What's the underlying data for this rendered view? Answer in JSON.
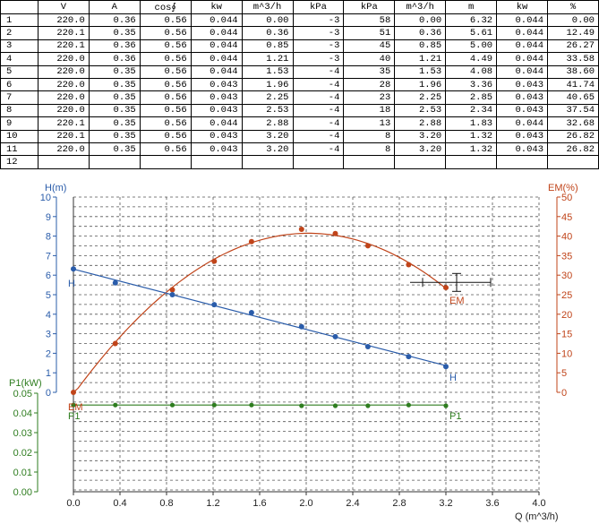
{
  "table": {
    "headers": [
      "",
      "V",
      "A",
      "cos∮",
      "kw",
      "m^3/h",
      "kPa",
      "kPa",
      "m^3/h",
      "m",
      "kw",
      "%"
    ],
    "rows": [
      [
        "1",
        "220.0",
        "0.36",
        "0.56",
        "0.044",
        "0.00",
        "-3",
        "58",
        "0.00",
        "6.32",
        "0.044",
        "0.00"
      ],
      [
        "2",
        "220.1",
        "0.35",
        "0.56",
        "0.044",
        "0.36",
        "-3",
        "51",
        "0.36",
        "5.61",
        "0.044",
        "12.49"
      ],
      [
        "3",
        "220.1",
        "0.36",
        "0.56",
        "0.044",
        "0.85",
        "-3",
        "45",
        "0.85",
        "5.00",
        "0.044",
        "26.27"
      ],
      [
        "4",
        "220.0",
        "0.36",
        "0.56",
        "0.044",
        "1.21",
        "-3",
        "40",
        "1.21",
        "4.49",
        "0.044",
        "33.58"
      ],
      [
        "5",
        "220.0",
        "0.35",
        "0.56",
        "0.044",
        "1.53",
        "-4",
        "35",
        "1.53",
        "4.08",
        "0.044",
        "38.60"
      ],
      [
        "6",
        "220.0",
        "0.35",
        "0.56",
        "0.043",
        "1.96",
        "-4",
        "28",
        "1.96",
        "3.36",
        "0.043",
        "41.74"
      ],
      [
        "7",
        "220.0",
        "0.35",
        "0.56",
        "0.043",
        "2.25",
        "-4",
        "23",
        "2.25",
        "2.85",
        "0.043",
        "40.65"
      ],
      [
        "8",
        "220.0",
        "0.35",
        "0.56",
        "0.043",
        "2.53",
        "-4",
        "18",
        "2.53",
        "2.34",
        "0.043",
        "37.54"
      ],
      [
        "9",
        "220.1",
        "0.35",
        "0.56",
        "0.044",
        "2.88",
        "-4",
        "13",
        "2.88",
        "1.83",
        "0.044",
        "32.68"
      ],
      [
        "10",
        "220.1",
        "0.35",
        "0.56",
        "0.043",
        "3.20",
        "-4",
        "8",
        "3.20",
        "1.32",
        "0.043",
        "26.82"
      ],
      [
        "11",
        "220.0",
        "0.35",
        "0.56",
        "0.043",
        "3.20",
        "-4",
        "8",
        "3.20",
        "1.32",
        "0.043",
        "26.82"
      ],
      [
        "12",
        "",
        "",
        "",
        "",
        "",
        "",
        "",
        "",
        "",
        "",
        ""
      ]
    ]
  },
  "chart_data": {
    "type": "line",
    "xlabel": "Q (m^3/h)",
    "x_ticks": [
      "0.0",
      "0.4",
      "0.8",
      "1.2",
      "1.6",
      "2.0",
      "2.4",
      "2.8",
      "3.2",
      "3.6",
      "4.0"
    ],
    "xlim": [
      0,
      4.0
    ],
    "grid": true,
    "axes": {
      "H": {
        "label": "H(m)",
        "lim": [
          0,
          10
        ],
        "ticks": [
          "0",
          "1",
          "2",
          "3",
          "4",
          "5",
          "6",
          "7",
          "8",
          "9",
          "10"
        ],
        "color": "#2a5caa"
      },
      "EM": {
        "label": "EM(%)",
        "lim": [
          0,
          50
        ],
        "ticks": [
          "0",
          "5",
          "10",
          "15",
          "20",
          "25",
          "30",
          "35",
          "40",
          "45",
          "50"
        ],
        "color": "#c0441a"
      },
      "P1": {
        "label": "P1(kW)",
        "lim": [
          0,
          0.05
        ],
        "ticks": [
          "0.00",
          "0.01",
          "0.02",
          "0.03",
          "0.04",
          "0.05"
        ],
        "color": "#2e7d1f"
      }
    },
    "series": [
      {
        "name": "H",
        "axis": "H",
        "color": "#2a5caa",
        "x": [
          0.0,
          0.36,
          0.85,
          1.21,
          1.53,
          1.96,
          2.25,
          2.53,
          2.88,
          3.2
        ],
        "y": [
          6.32,
          5.61,
          5.0,
          4.49,
          4.08,
          3.36,
          2.85,
          2.34,
          1.83,
          1.32
        ]
      },
      {
        "name": "EM",
        "axis": "EM",
        "color": "#c0441a",
        "x": [
          0.0,
          0.36,
          0.85,
          1.21,
          1.53,
          1.96,
          2.25,
          2.53,
          2.88,
          3.2
        ],
        "y": [
          0.0,
          12.49,
          26.27,
          33.58,
          38.6,
          41.74,
          40.65,
          37.54,
          32.68,
          26.82
        ]
      },
      {
        "name": "P1",
        "axis": "P1",
        "color": "#2e7d1f",
        "x": [
          0.0,
          0.36,
          0.85,
          1.21,
          1.53,
          1.96,
          2.25,
          2.53,
          2.88,
          3.2
        ],
        "y": [
          0.044,
          0.044,
          0.044,
          0.044,
          0.044,
          0.043,
          0.043,
          0.043,
          0.044,
          0.043
        ]
      }
    ],
    "operating_point": {
      "x": 3.2,
      "y": 5.72
    }
  }
}
